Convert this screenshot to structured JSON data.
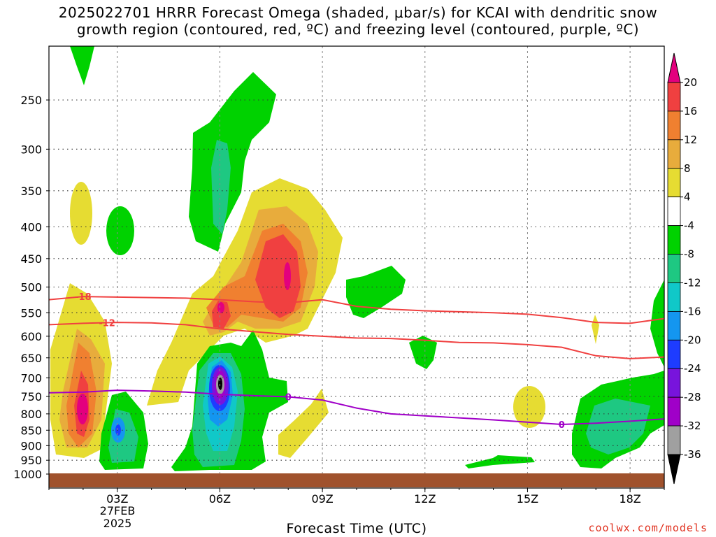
{
  "title": {
    "line1": "2025022701 HRRR Forecast Omega (shaded, μbar/s) for KCAI with dendritic snow",
    "line2": "growth region (contoured, red, ºC) and freezing level (contoured, purple, ºC)"
  },
  "xlabel": "Forecast Time (UTC)",
  "credit": "coolwx.com/models",
  "date_label": {
    "line1": "27FEB",
    "line2": "2025"
  },
  "chart_data": {
    "type": "heatmap",
    "title": "2025022701 HRRR Forecast Omega (shaded, μbar/s) for KCAI with dendritic snow growth region (contoured, red, ºC) and freezing level (contoured, purple, ºC)",
    "xlabel": "Forecast Time (UTC)",
    "ylabel": "",
    "x_range_hours_utc": [
      1,
      19
    ],
    "x_ticks": [
      {
        "hour": 3,
        "label": "03Z"
      },
      {
        "hour": 6,
        "label": "06Z"
      },
      {
        "hour": 9,
        "label": "09Z"
      },
      {
        "hour": 12,
        "label": "12Z"
      },
      {
        "hour": 15,
        "label": "15Z"
      },
      {
        "hour": 18,
        "label": "18Z"
      }
    ],
    "y_range_hpa": [
      1010,
      200
    ],
    "y_ticks": [
      250,
      300,
      350,
      400,
      450,
      500,
      550,
      600,
      650,
      700,
      750,
      800,
      850,
      900,
      950,
      1000
    ],
    "grid": true,
    "colorbar": {
      "labels": [
        "20",
        "16",
        "12",
        "8",
        "4",
        "-4",
        "-8",
        "-12",
        "-16",
        "-20",
        "-24",
        "-28",
        "-32",
        "-36"
      ],
      "bins": [
        {
          "color": "#e3007e"
        },
        {
          "color": "#f04040"
        },
        {
          "color": "#f08030"
        },
        {
          "color": "#e8ac3c"
        },
        {
          "color": "#e6dc32"
        },
        {
          "color": "#ffffff"
        },
        {
          "color": "#00d200"
        },
        {
          "color": "#1ec882"
        },
        {
          "color": "#10c8c8"
        },
        {
          "color": "#1496f0"
        },
        {
          "color": "#1e3cff"
        },
        {
          "color": "#7814dc"
        },
        {
          "color": "#a000c8"
        },
        {
          "color": "#a0a0a0"
        },
        {
          "color": "#000000"
        }
      ]
    },
    "omega_features": [
      {
        "category": "4 to 8",
        "hour": 2.0,
        "p": 765,
        "color": "#e6dc32",
        "type": "rising"
      },
      {
        "category": "8 to 12",
        "hour": 2.0,
        "p": 755,
        "color": "#e8ac3c",
        "type": "rising"
      },
      {
        "category": "12 to 16",
        "hour": 2.0,
        "p": 745,
        "color": "#f08030",
        "type": "rising"
      },
      {
        "category": "16 to 20",
        "hour": 2.0,
        "p": 770,
        "color": "#f04040",
        "type": "rising"
      },
      {
        "category": ">20",
        "hour": 2.0,
        "p": 795,
        "color": "#e3007e",
        "type": "rising"
      },
      {
        "category": "4 to 8",
        "hour": 7.9,
        "p": 455,
        "color": "#e6dc32",
        "type": "rising"
      },
      {
        "category": "16 to 20",
        "hour": 7.9,
        "p": 460,
        "color": "#f04040",
        "type": "rising"
      },
      {
        "category": ">20",
        "hour": 7.9,
        "p": 470,
        "color": "#e3007e",
        "type": "rising"
      },
      {
        "category": ">20",
        "hour": 6.0,
        "p": 535,
        "color": "#e3007e",
        "type": "rising"
      },
      {
        "category": "-4 to -8",
        "hour": 6.0,
        "p": 715,
        "color": "#00d200",
        "type": "sinking"
      },
      {
        "category": "< -36",
        "hour": 6.0,
        "p": 710,
        "color": "#000000",
        "type": "sinking"
      },
      {
        "category": "-16 to -20",
        "hour": 3.0,
        "p": 855,
        "color": "#1496f0",
        "type": "sinking"
      },
      {
        "category": "-8 to -12",
        "hour": 17.8,
        "p": 860,
        "color": "#1ec882",
        "type": "sinking"
      }
    ],
    "dendritic_contours": [
      {
        "label": "-18",
        "color": "#f04040",
        "points": [
          [
            1,
            524
          ],
          [
            2,
            518
          ],
          [
            3,
            519
          ],
          [
            4,
            520
          ],
          [
            5,
            521
          ],
          [
            6,
            524
          ],
          [
            7,
            528
          ],
          [
            8,
            530
          ],
          [
            9,
            524
          ],
          [
            10,
            537
          ],
          [
            11,
            543
          ],
          [
            12,
            546
          ],
          [
            13,
            548
          ],
          [
            14,
            550
          ],
          [
            15,
            553
          ],
          [
            16,
            560
          ],
          [
            17,
            570
          ],
          [
            18,
            572
          ],
          [
            19,
            562
          ]
        ]
      },
      {
        "label": "-12",
        "color": "#f04040",
        "points": [
          [
            1,
            575
          ],
          [
            2,
            572
          ],
          [
            3,
            570
          ],
          [
            4,
            571
          ],
          [
            5,
            575
          ],
          [
            6,
            584
          ],
          [
            7,
            590
          ],
          [
            8,
            596
          ],
          [
            9,
            600
          ],
          [
            10,
            604
          ],
          [
            11,
            605
          ],
          [
            12,
            609
          ],
          [
            13,
            614
          ],
          [
            14,
            615
          ],
          [
            15,
            619
          ],
          [
            16,
            625
          ],
          [
            17,
            645
          ],
          [
            18,
            652
          ],
          [
            19,
            648
          ]
        ]
      }
    ],
    "freezing_level": {
      "label": "0",
      "color": "#a000c8",
      "points": [
        [
          1,
          740
        ],
        [
          2,
          738
        ],
        [
          3,
          733
        ],
        [
          4,
          735
        ],
        [
          5,
          738
        ],
        [
          6,
          744
        ],
        [
          7,
          748
        ],
        [
          8,
          751
        ],
        [
          9,
          760
        ],
        [
          10,
          783
        ],
        [
          11,
          800
        ],
        [
          12,
          806
        ],
        [
          13,
          812
        ],
        [
          14,
          818
        ],
        [
          15,
          825
        ],
        [
          16,
          832
        ],
        [
          17,
          828
        ],
        [
          18,
          822
        ],
        [
          19,
          815
        ]
      ]
    }
  }
}
